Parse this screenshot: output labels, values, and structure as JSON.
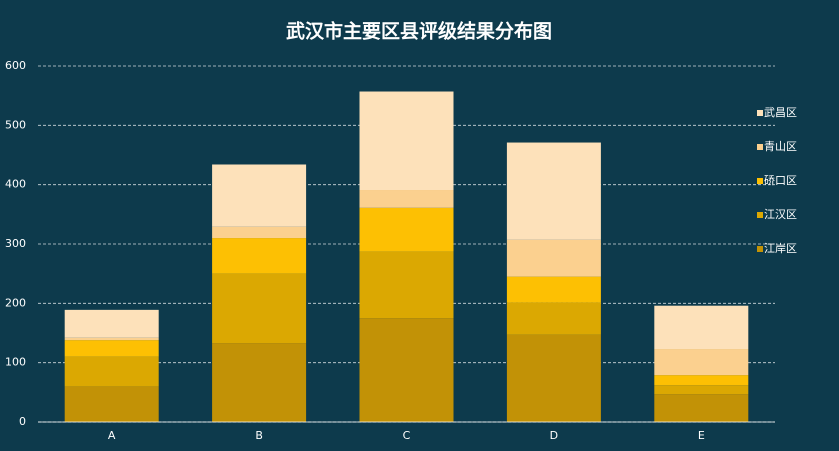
{
  "chart_data": {
    "type": "stacked_bar",
    "title": "武汉市主要区县评级结果分布图",
    "categories": [
      "A",
      "B",
      "C",
      "D",
      "E"
    ],
    "series": [
      {
        "name": "江岸区",
        "color": "#c29206",
        "values": [
          60,
          133,
          175,
          147,
          47
        ]
      },
      {
        "name": "江汉区",
        "color": "#dba802",
        "values": [
          50,
          117,
          112,
          54,
          15
        ]
      },
      {
        "name": "硚口区",
        "color": "#fdc003",
        "values": [
          28,
          60,
          74,
          44,
          17
        ]
      },
      {
        "name": "青山区",
        "color": "#fbd08f",
        "values": [
          4,
          19,
          30,
          62,
          44
        ]
      },
      {
        "name": "武昌区",
        "color": "#fde1ba",
        "values": [
          47,
          105,
          166,
          164,
          73
        ]
      }
    ],
    "ylim": [
      0,
      600
    ],
    "yticks": [
      0,
      100,
      200,
      300,
      400,
      500,
      600
    ],
    "grid": true,
    "legend": "right"
  }
}
